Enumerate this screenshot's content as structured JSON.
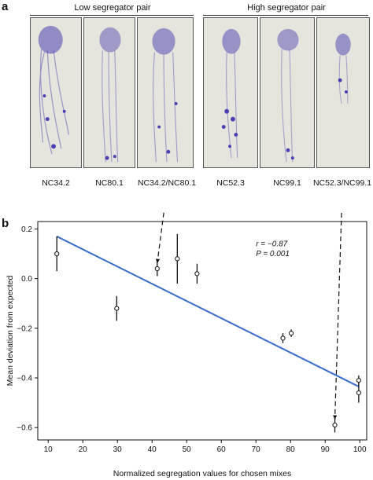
{
  "panel_a": {
    "letter": "a",
    "groups": [
      {
        "label": "Low segregator pair",
        "images": [
          "NC34.2",
          "NC80.1",
          "NC34.2/NC80.1"
        ]
      },
      {
        "label": "High segregator pair",
        "images": [
          "NC52.3",
          "NC99.1",
          "NC52.3/NC99.1"
        ]
      }
    ]
  },
  "panel_b": {
    "letter": "b"
  },
  "colors": {
    "stain": "#4a3fb0",
    "fit_line": "#3a6cc9",
    "photo_bg": "#e5e4dd"
  },
  "chart_data": {
    "type": "scatter",
    "xlabel": "Normalized segregation values for chosen mixes",
    "ylabel": "Mean deviation from expected",
    "xlim": [
      7,
      102
    ],
    "ylim": [
      -0.65,
      0.23
    ],
    "xticks": [
      10,
      20,
      30,
      40,
      50,
      60,
      70,
      80,
      90,
      100
    ],
    "yticks": [
      0.2,
      0.0,
      -0.2,
      -0.4,
      -0.6
    ],
    "ytick_labels": [
      "0.2",
      "0.0",
      "−0.2",
      "−0.4",
      "−0.6"
    ],
    "annotation_r": "r = −0.87",
    "annotation_p": "P = 0.001",
    "points": [
      {
        "x": 12.5,
        "y": 0.1,
        "err": 0.07
      },
      {
        "x": 29.8,
        "y": -0.12,
        "err": 0.05
      },
      {
        "x": 41.5,
        "y": 0.04,
        "err": 0.03
      },
      {
        "x": 47.3,
        "y": 0.08,
        "err": 0.1
      },
      {
        "x": 53.0,
        "y": 0.02,
        "err": 0.04
      },
      {
        "x": 77.8,
        "y": -0.24,
        "err": 0.02
      },
      {
        "x": 80.2,
        "y": -0.22,
        "err": 0.015
      },
      {
        "x": 92.8,
        "y": -0.59,
        "err": 0.03
      },
      {
        "x": 99.7,
        "y": -0.41,
        "err": 0.02
      },
      {
        "x": 99.7,
        "y": -0.46,
        "err": 0.04
      }
    ],
    "fit_line": {
      "x": [
        12.5,
        99.7
      ],
      "y": [
        0.17,
        -0.435
      ]
    },
    "connectors": [
      {
        "from_image": "NC34.2/NC80.1",
        "to_point": 2
      },
      {
        "from_image": "NC52.3/NC99.1",
        "to_point": 7
      }
    ]
  }
}
